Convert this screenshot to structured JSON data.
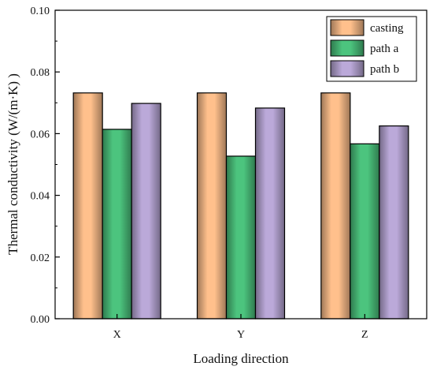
{
  "chart_data": {
    "type": "bar",
    "categories": [
      "X",
      "Y",
      "Z"
    ],
    "series": [
      {
        "name": "casting",
        "values": [
          0.0732,
          0.0732,
          0.0732
        ],
        "color": "#FFC08C"
      },
      {
        "name": "path a",
        "values": [
          0.0614,
          0.0527,
          0.0567
        ],
        "color": "#4CC47E"
      },
      {
        "name": "path b",
        "values": [
          0.0698,
          0.0683,
          0.0625
        ],
        "color": "#BBA9D9"
      }
    ],
    "xlabel": "Loading direction",
    "ylabel": "Thermal conductivity (W/(m·K) )",
    "ylim": [
      0,
      0.1
    ],
    "yticks": [
      "0.00",
      "0.02",
      "0.04",
      "0.06",
      "0.08",
      "0.10"
    ],
    "grid": false,
    "legend_position": "top-right"
  }
}
